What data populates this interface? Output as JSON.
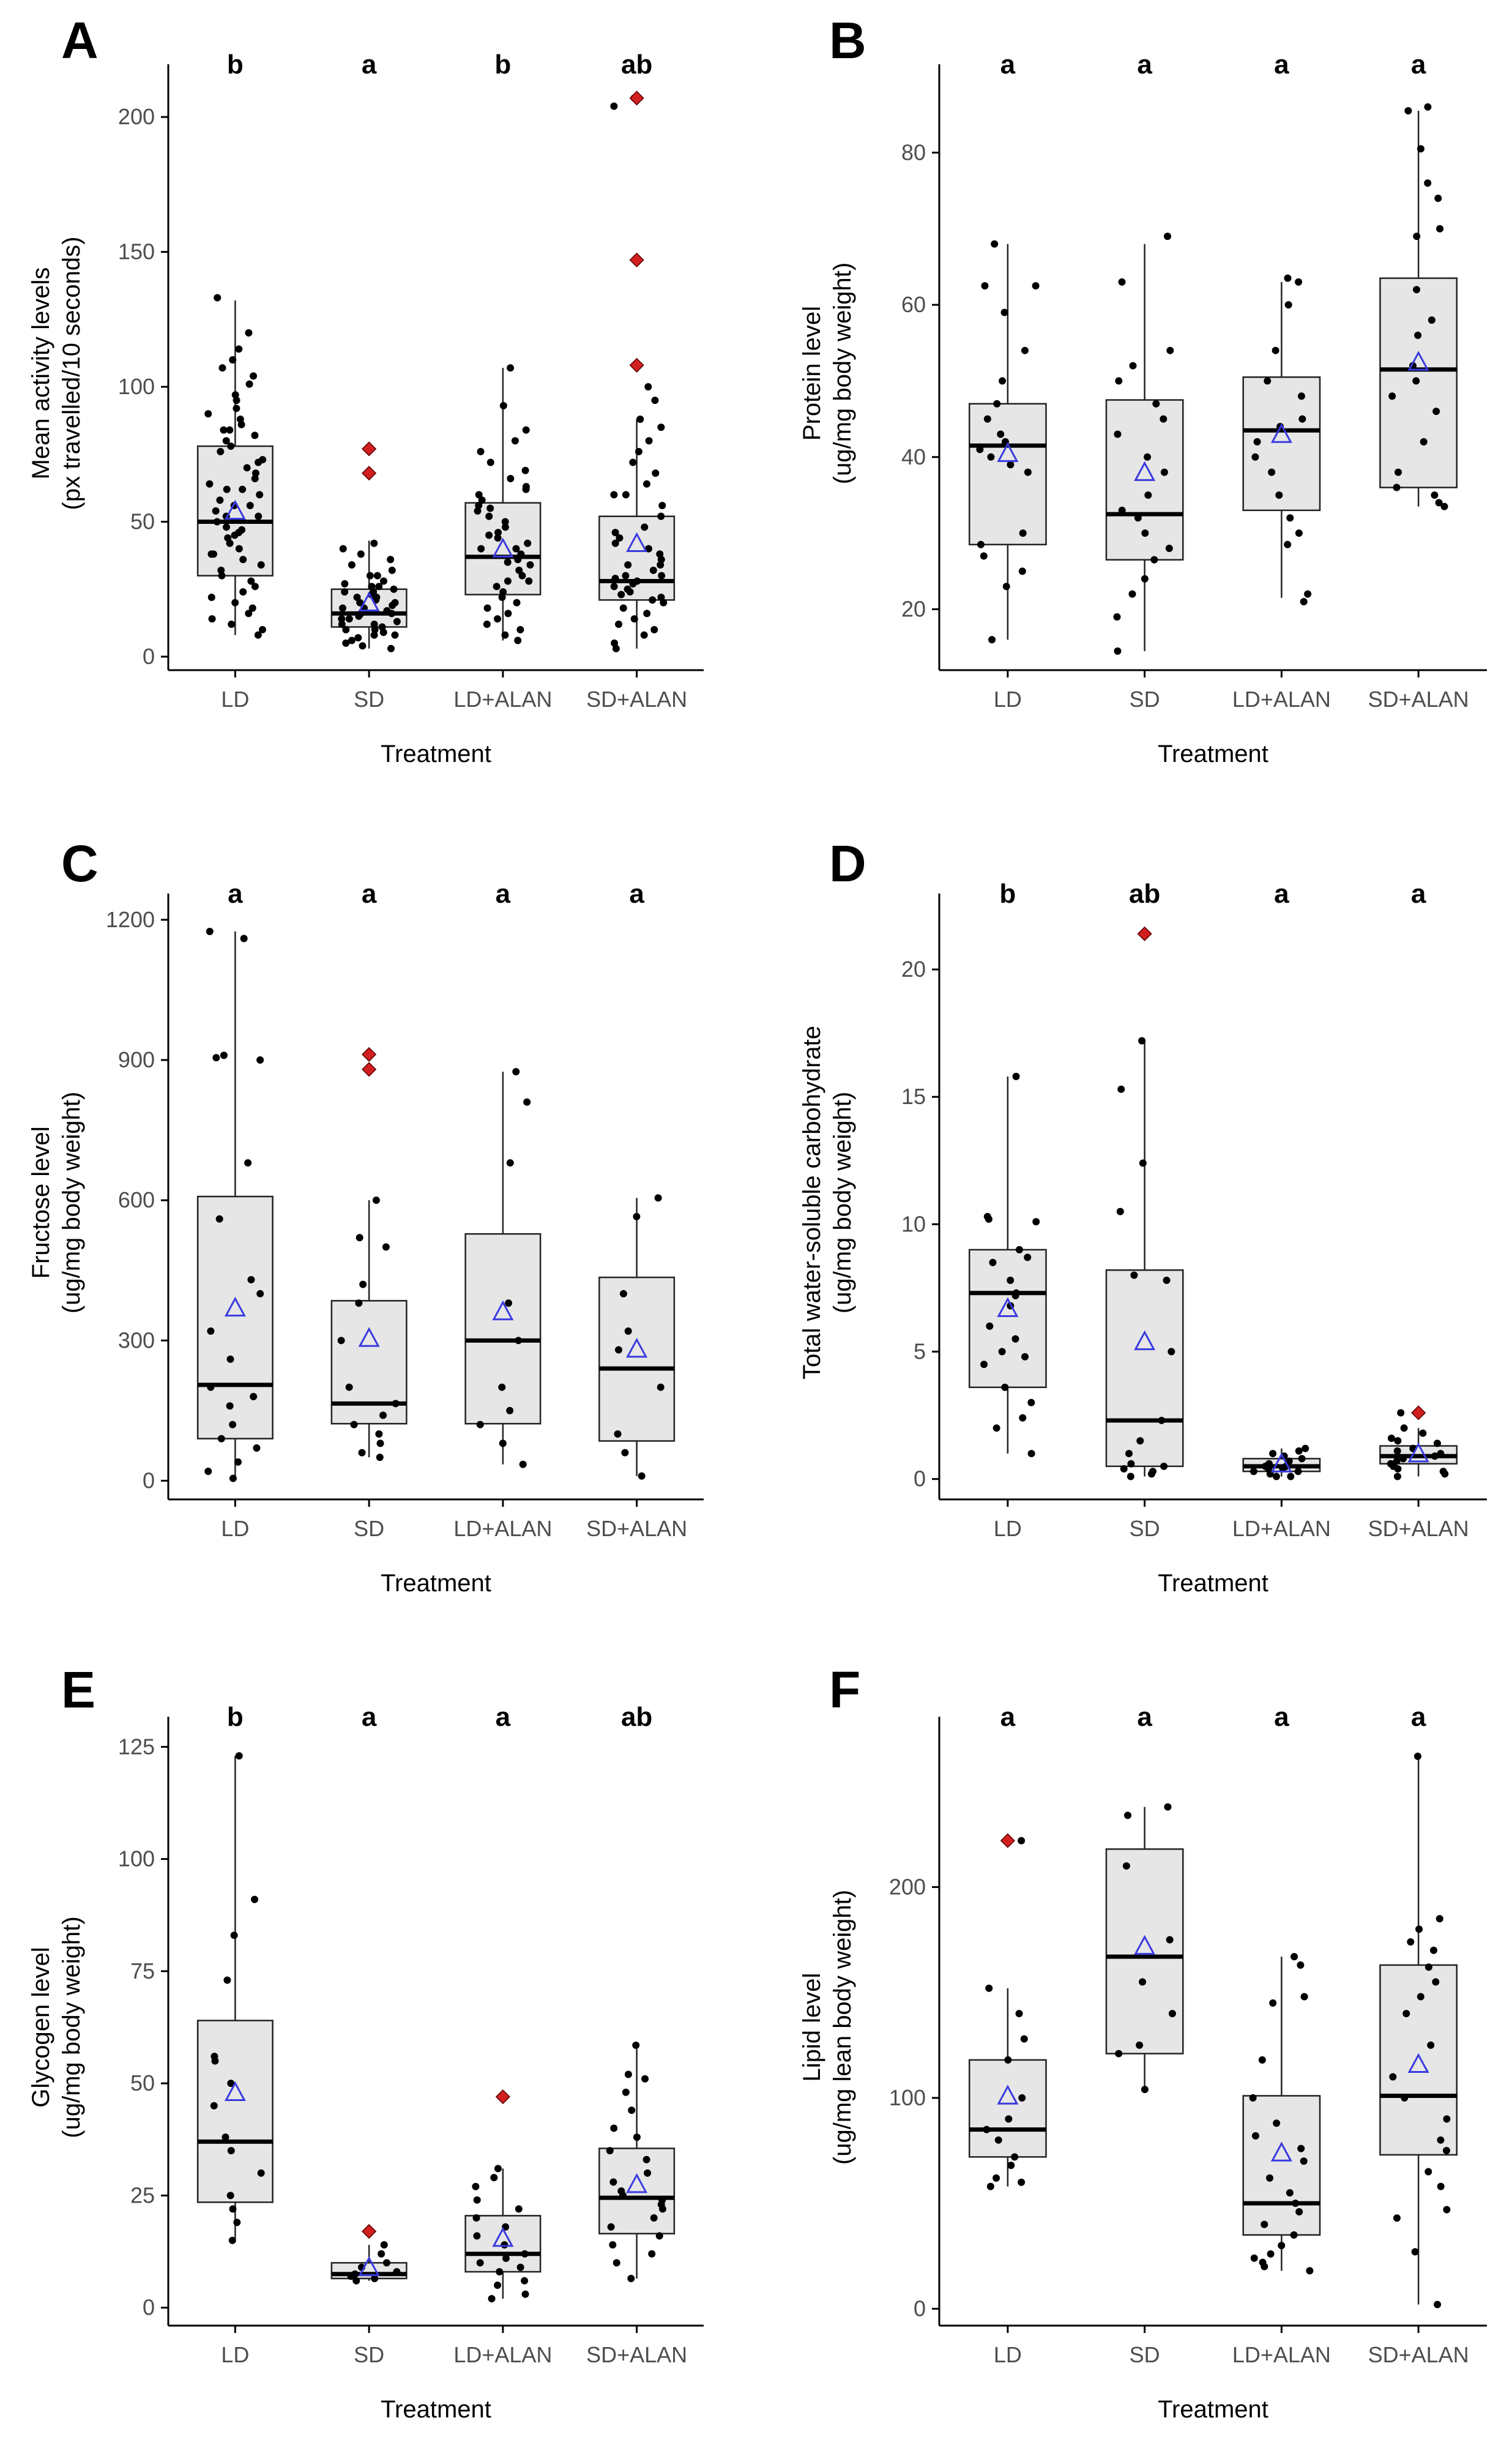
{
  "chart_data": [
    {
      "type": "boxplot",
      "panel": "A",
      "ylabel_line1": "Mean activity levels",
      "ylabel_line2": "(px travelled/10 seconds)",
      "xlabel": "Treatment",
      "categories": [
        "LD",
        "SD",
        "LD+ALAN",
        "SD+ALAN"
      ],
      "significance": [
        "b",
        "a",
        "b",
        "ab"
      ],
      "ylim": [
        -5,
        215
      ],
      "yticks": [
        0,
        50,
        100,
        150,
        200
      ],
      "boxes": [
        {
          "min": 8,
          "q1": 30,
          "median": 50,
          "q3": 78,
          "max": 132,
          "mean": 54,
          "outliers": []
        },
        {
          "min": 3,
          "q1": 11,
          "median": 16,
          "q3": 25,
          "max": 43,
          "mean": 20,
          "outliers": [
            77,
            68
          ]
        },
        {
          "min": 6,
          "q1": 23,
          "median": 37,
          "q3": 57,
          "max": 107,
          "mean": 40,
          "outliers": []
        },
        {
          "min": 3,
          "q1": 21,
          "median": 28,
          "q3": 52,
          "max": 88,
          "mean": 42,
          "outliers": [
            207,
            147,
            108
          ]
        }
      ],
      "points": [
        [
          133,
          120,
          114,
          110,
          107,
          104,
          101,
          97,
          95,
          92,
          90,
          88,
          86,
          84,
          82,
          80,
          78,
          76,
          73,
          70,
          68,
          66,
          64,
          62,
          60,
          58,
          56,
          54,
          52,
          50,
          48,
          46,
          44,
          42,
          40,
          38,
          36,
          34,
          32,
          30,
          28,
          26,
          24,
          22,
          20,
          18,
          16,
          14,
          12,
          10,
          8,
          56,
          62,
          45,
          38,
          72,
          84,
          52,
          47
        ],
        [
          42,
          40,
          38,
          36,
          34,
          32,
          30,
          28,
          27,
          26,
          25,
          24,
          23,
          22,
          21,
          20,
          19,
          18,
          17,
          16,
          15,
          14,
          13,
          12,
          11,
          10,
          9,
          8,
          7,
          6,
          5,
          4,
          3,
          18,
          22,
          14,
          12,
          26,
          30,
          16,
          20,
          24,
          10,
          8
        ],
        [
          107,
          93,
          84,
          80,
          76,
          72,
          69,
          66,
          63,
          60,
          58,
          56,
          54,
          52,
          50,
          48,
          46,
          44,
          42,
          40,
          38,
          36,
          34,
          32,
          30,
          28,
          26,
          24,
          22,
          20,
          18,
          16,
          14,
          12,
          10,
          8,
          6,
          45,
          55,
          35,
          28,
          62,
          40
        ],
        [
          88,
          85,
          80,
          76,
          72,
          68,
          64,
          60,
          56,
          52,
          48,
          46,
          44,
          42,
          40,
          38,
          36,
          34,
          32,
          30,
          29,
          28,
          27,
          26,
          25,
          24,
          23,
          22,
          21,
          20,
          18,
          16,
          14,
          12,
          10,
          8,
          5,
          3,
          207,
          204,
          100,
          95,
          60,
          34,
          30
        ]
      ]
    },
    {
      "type": "boxplot",
      "panel": "B",
      "ylabel_line1": "Protein level",
      "ylabel_line2": "(ug/mg body weight)",
      "xlabel": "Treatment",
      "categories": [
        "LD",
        "SD",
        "LD+ALAN",
        "SD+ALAN"
      ],
      "significance": [
        "a",
        "a",
        "a",
        "a"
      ],
      "ylim": [
        12,
        90
      ],
      "yticks": [
        20,
        40,
        60,
        80
      ],
      "boxes": [
        {
          "min": 16,
          "q1": 28.5,
          "median": 41.5,
          "q3": 47,
          "max": 68,
          "mean": 40.5,
          "outliers": []
        },
        {
          "min": 14.5,
          "q1": 26.5,
          "median": 32.5,
          "q3": 47.5,
          "max": 68,
          "mean": 38,
          "outliers": []
        },
        {
          "min": 21.5,
          "q1": 33,
          "median": 43.5,
          "q3": 50.5,
          "max": 63,
          "mean": 43,
          "outliers": []
        },
        {
          "min": 33.5,
          "q1": 36,
          "median": 51.5,
          "q3": 63.5,
          "max": 85.5,
          "mean": 52.5,
          "outliers": []
        }
      ],
      "points": [
        [
          68,
          62.5,
          62.5,
          59,
          54,
          50,
          47,
          45,
          43,
          42,
          41,
          40,
          39,
          38,
          30,
          28.5,
          27,
          25,
          23,
          16
        ],
        [
          69,
          63,
          54,
          52,
          50,
          47,
          45,
          43,
          40,
          38,
          35,
          33,
          32,
          30,
          28,
          26.5,
          24,
          22,
          19,
          14.5
        ],
        [
          63.5,
          63,
          60,
          54,
          50,
          48,
          45,
          44,
          42,
          40,
          38,
          35,
          32,
          30,
          28.5,
          22,
          21
        ],
        [
          86,
          85.5,
          80.5,
          76,
          74,
          70,
          69,
          62,
          58,
          56,
          52,
          50,
          48,
          46,
          42,
          38,
          36,
          35,
          34,
          33.5
        ]
      ]
    },
    {
      "type": "boxplot",
      "panel": "C",
      "ylabel_line1": "Fructose level",
      "ylabel_line2": "(ug/mg body weight)",
      "xlabel": "Treatment",
      "categories": [
        "LD",
        "SD",
        "LD+ALAN",
        "SD+ALAN"
      ],
      "significance": [
        "a",
        "a",
        "a",
        "a"
      ],
      "ylim": [
        -40,
        1230
      ],
      "yticks": [
        0,
        300,
        600,
        900,
        1200
      ],
      "boxes": [
        {
          "min": 5,
          "q1": 90,
          "median": 205,
          "q3": 608,
          "max": 1175,
          "mean": 370,
          "outliers": []
        },
        {
          "min": 50,
          "q1": 122,
          "median": 165,
          "q3": 385,
          "max": 600,
          "mean": 305,
          "outliers": [
            912,
            880
          ]
        },
        {
          "min": 35,
          "q1": 122,
          "median": 300,
          "q3": 528,
          "max": 875,
          "mean": 362,
          "outliers": []
        },
        {
          "min": 10,
          "q1": 85,
          "median": 240,
          "q3": 435,
          "max": 605,
          "mean": 282,
          "outliers": []
        }
      ],
      "points": [
        [
          1175,
          1160,
          910,
          905,
          900,
          680,
          560,
          430,
          400,
          320,
          260,
          200,
          180,
          160,
          120,
          90,
          70,
          40,
          20,
          5
        ],
        [
          600,
          520,
          500,
          420,
          380,
          300,
          200,
          165,
          140,
          120,
          100,
          80,
          60,
          50
        ],
        [
          875,
          810,
          680,
          380,
          300,
          200,
          150,
          120,
          80,
          35
        ],
        [
          605,
          565,
          400,
          320,
          280,
          200,
          100,
          60,
          10
        ]
      ]
    },
    {
      "type": "boxplot",
      "panel": "D",
      "ylabel_line1": "Total water-soluble carbohydrate",
      "ylabel_line2": "(ug/mg body weight)",
      "xlabel": "Treatment",
      "categories": [
        "LD",
        "SD",
        "LD+ALAN",
        "SD+ALAN"
      ],
      "significance": [
        "b",
        "ab",
        "a",
        "a"
      ],
      "ylim": [
        -0.8,
        22.5
      ],
      "yticks": [
        0,
        5,
        10,
        15,
        20
      ],
      "boxes": [
        {
          "min": 1.0,
          "q1": 3.6,
          "median": 7.3,
          "q3": 9.0,
          "max": 15.8,
          "mean": 6.7,
          "outliers": []
        },
        {
          "min": 0.1,
          "q1": 0.5,
          "median": 2.3,
          "q3": 8.2,
          "max": 17.2,
          "mean": 5.4,
          "outliers": [
            21.4
          ]
        },
        {
          "min": 0.1,
          "q1": 0.3,
          "median": 0.5,
          "q3": 0.8,
          "max": 1.2,
          "mean": 0.6,
          "outliers": []
        },
        {
          "min": 0.1,
          "q1": 0.6,
          "median": 0.9,
          "q3": 1.3,
          "max": 2.0,
          "mean": 1.0,
          "outliers": [
            2.6
          ]
        }
      ],
      "points": [
        [
          15.8,
          10.3,
          10.2,
          10.1,
          9.0,
          8.7,
          8.5,
          7.8,
          7.3,
          7.2,
          6.8,
          6.0,
          5.5,
          5.0,
          4.8,
          4.5,
          3.6,
          3.0,
          2.4,
          2.0,
          1.0
        ],
        [
          17.2,
          15.3,
          12.4,
          10.5,
          8.0,
          7.8,
          5.0,
          2.3,
          1.5,
          1.0,
          0.6,
          0.5,
          0.4,
          0.3,
          0.2,
          0.1
        ],
        [
          1.2,
          1.1,
          1.0,
          0.9,
          0.8,
          0.7,
          0.6,
          0.5,
          0.5,
          0.4,
          0.4,
          0.3,
          0.3,
          0.2,
          0.1,
          0.1
        ],
        [
          2.6,
          2.0,
          1.8,
          1.6,
          1.5,
          1.4,
          1.2,
          1.1,
          1.0,
          0.9,
          0.8,
          0.7,
          0.6,
          0.5,
          0.4,
          0.3,
          0.2,
          0.1
        ]
      ]
    },
    {
      "type": "boxplot",
      "panel": "E",
      "ylabel_line1": "Glycogen level",
      "ylabel_line2": "(ug/mg body weight)",
      "xlabel": "Treatment",
      "categories": [
        "LD",
        "SD",
        "LD+ALAN",
        "SD+ALAN"
      ],
      "significance": [
        "b",
        "a",
        "a",
        "ab"
      ],
      "ylim": [
        -4,
        129
      ],
      "yticks": [
        0,
        25,
        50,
        75,
        100,
        125
      ],
      "boxes": [
        {
          "min": 15,
          "q1": 23.5,
          "median": 37,
          "q3": 64,
          "max": 123,
          "mean": 48,
          "outliers": []
        },
        {
          "min": 6,
          "q1": 6.5,
          "median": 7.5,
          "q3": 10,
          "max": 14,
          "mean": 9,
          "outliers": [
            17
          ]
        },
        {
          "min": 2,
          "q1": 8,
          "median": 12,
          "q3": 20.5,
          "max": 31,
          "mean": 15.5,
          "outliers": [
            47
          ]
        },
        {
          "min": 6.5,
          "q1": 16.5,
          "median": 24.5,
          "q3": 35.5,
          "max": 58.5,
          "mean": 27.5,
          "outliers": []
        }
      ],
      "points": [
        [
          123,
          91,
          83,
          73,
          56,
          55,
          50,
          45,
          38,
          35,
          30,
          25,
          22,
          19,
          15
        ],
        [
          14,
          12,
          10,
          9,
          8,
          7.5,
          7,
          6.5,
          6
        ],
        [
          31,
          29,
          27,
          24,
          22,
          20,
          18,
          16,
          14,
          12,
          11,
          10,
          9,
          8,
          6,
          5,
          3,
          2
        ],
        [
          58.5,
          52,
          51,
          48,
          44,
          40,
          38,
          35,
          33,
          30,
          28,
          26,
          25,
          24,
          23,
          22,
          20,
          18,
          16,
          14,
          12,
          10,
          6.5
        ]
      ]
    },
    {
      "type": "boxplot",
      "panel": "F",
      "ylabel_line1": "Lipid level",
      "ylabel_line2": "(ug/mg lean body weight)",
      "xlabel": "Treatment",
      "categories": [
        "LD",
        "SD",
        "LD+ALAN",
        "SD+ALAN"
      ],
      "significance": [
        "a",
        "a",
        "a",
        "a"
      ],
      "ylim": [
        -8,
        275
      ],
      "yticks": [
        0,
        100,
        200
      ],
      "boxes": [
        {
          "min": 58,
          "q1": 72,
          "median": 85,
          "q3": 118,
          "max": 152,
          "mean": 101,
          "outliers": [
            222
          ]
        },
        {
          "min": 104,
          "q1": 121,
          "median": 167,
          "q3": 218,
          "max": 238,
          "mean": 172,
          "outliers": []
        },
        {
          "min": 18,
          "q1": 35,
          "median": 50,
          "q3": 101,
          "max": 167,
          "mean": 74,
          "outliers": []
        },
        {
          "min": 2,
          "q1": 73,
          "median": 101,
          "q3": 163,
          "max": 262,
          "mean": 116,
          "outliers": []
        }
      ],
      "points": [
        [
          222,
          152,
          140,
          128,
          118,
          100,
          90,
          85,
          80,
          72,
          68,
          62,
          60,
          58
        ],
        [
          238,
          234,
          210,
          175,
          155,
          140,
          125,
          121,
          104
        ],
        [
          167,
          163,
          148,
          145,
          118,
          100,
          88,
          82,
          76,
          70,
          62,
          55,
          50,
          46,
          40,
          35,
          30,
          26,
          24,
          22,
          20,
          18
        ],
        [
          262,
          185,
          180,
          174,
          170,
          162,
          155,
          148,
          140,
          125,
          110,
          100,
          90,
          80,
          75,
          65,
          58,
          47,
          43,
          27,
          2
        ]
      ]
    }
  ]
}
